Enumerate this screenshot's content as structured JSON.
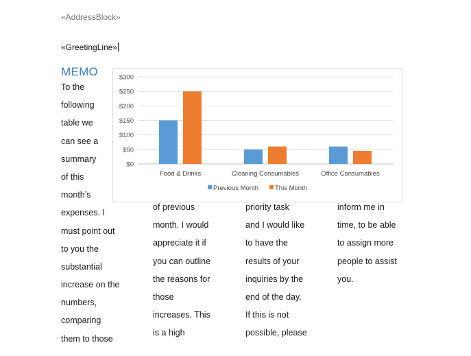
{
  "document": {
    "address_field": "«AddressBlock»",
    "greeting_field": "«GreetingLine»",
    "memo_title": "MEMO",
    "columns": [
      [
        "To the",
        "following",
        "table we",
        "can see a",
        "summary",
        "of this",
        "month’s",
        "expenses. I",
        "must point out",
        "to you the",
        "substantial",
        "increase on the",
        "numbers,",
        "comparing",
        "them to those"
      ],
      [
        "of previous",
        "month. I would",
        "appreciate it if",
        "you can outline",
        "the reasons for",
        "those",
        "increases. This",
        "is a high"
      ],
      [
        "priority task",
        "and I would like",
        "to have the",
        "results of your",
        "inquiries by the",
        "end of the day.",
        "If this is not",
        "possible, please"
      ],
      [
        "inform me in",
        "time, to be able",
        "to assign more",
        "people to assist",
        "you."
      ]
    ]
  },
  "chart_data": {
    "type": "bar",
    "categories": [
      "Food & Drinks",
      "Cleaning Consumables",
      "Office Consumables"
    ],
    "series": [
      {
        "name": "Previous Month",
        "values": [
          150,
          50,
          60
        ],
        "color": "#5b9bd5"
      },
      {
        "name": "This Month",
        "values": [
          250,
          60,
          45
        ],
        "color": "#ed7d31"
      }
    ],
    "yticks": [
      "$0",
      "$50",
      "$100",
      "$150",
      "$200",
      "$250",
      "$300"
    ],
    "ylim": [
      0,
      300
    ],
    "grid": true,
    "legend": "bottom"
  }
}
